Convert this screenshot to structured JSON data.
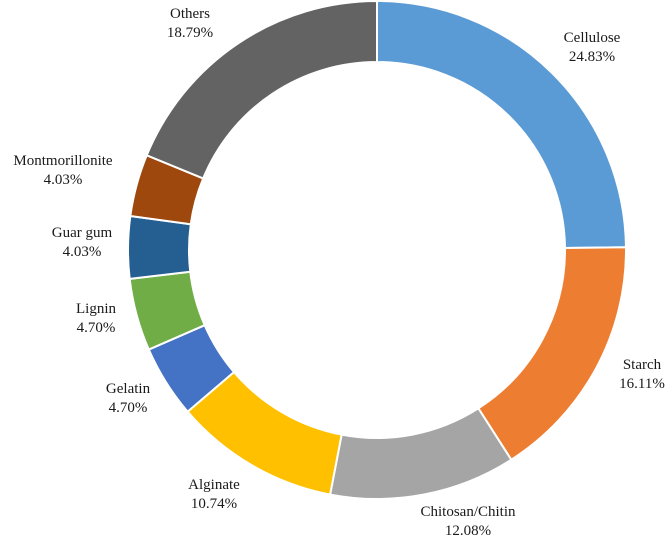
{
  "chart_data": {
    "type": "pie",
    "style": "donut",
    "title": "",
    "categories": [
      "Cellulose",
      "Starch",
      "Chitosan/Chitin",
      "Alginate",
      "Gelatin",
      "Lignin",
      "Guar gum",
      "Montmorillonite",
      "Others"
    ],
    "values": [
      24.83,
      16.11,
      12.08,
      10.74,
      4.7,
      4.7,
      4.03,
      4.03,
      18.79
    ],
    "value_labels": [
      "24.83%",
      "16.11%",
      "12.08%",
      "10.74%",
      "4.70%",
      "4.70%",
      "4.03%",
      "4.03%",
      "18.79%"
    ],
    "colors": [
      "#5b9bd5",
      "#ed7d31",
      "#a5a5a5",
      "#ffc000",
      "#4472c4",
      "#70ad47",
      "#255e91",
      "#9e480e",
      "#636363"
    ],
    "start_angle": "12 o'clock",
    "direction": "clockwise",
    "legend": "none"
  }
}
